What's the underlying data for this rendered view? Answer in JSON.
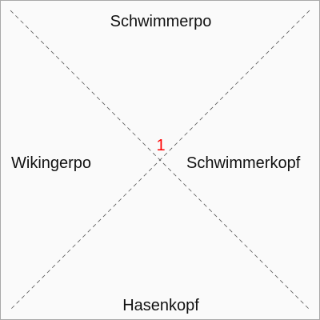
{
  "diagram": {
    "labels": {
      "top": "Schwimmerpo",
      "bottom": "Hasenkopf",
      "left": "Wikingerpo",
      "right": "Schwimmerkopf"
    },
    "center_number": "1",
    "colors": {
      "background": "#fafafa",
      "border": "#a9a9a9",
      "diagonal": "#555555",
      "text": "#111111",
      "center_number": "#ff0000"
    }
  }
}
